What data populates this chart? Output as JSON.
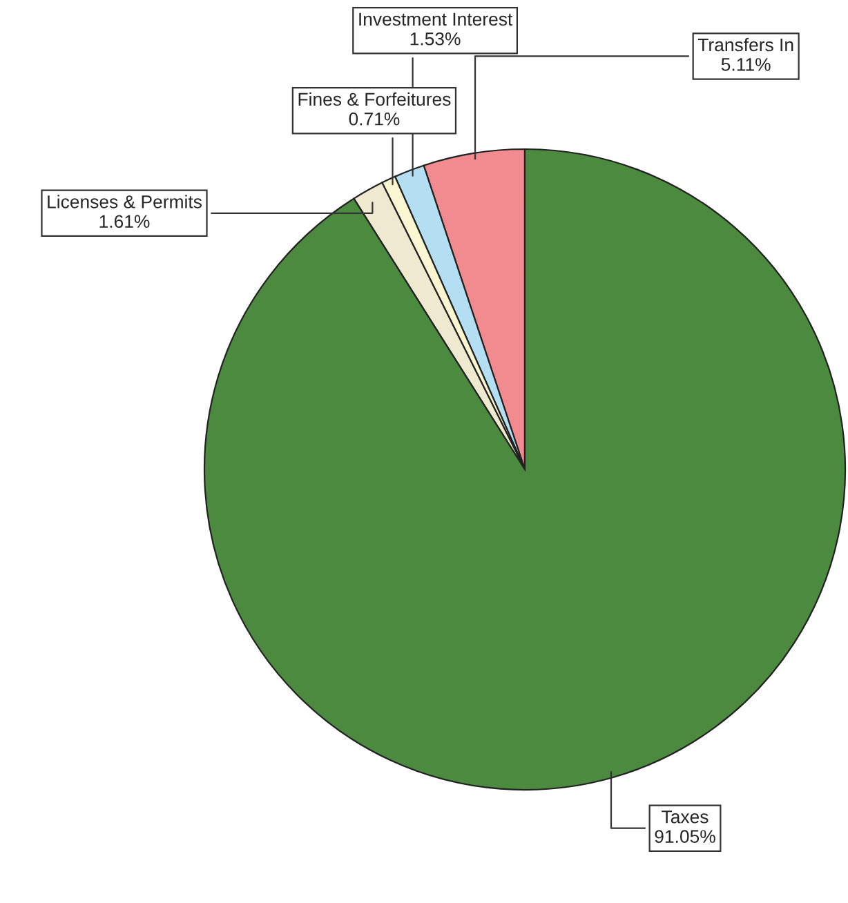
{
  "chart_data": {
    "type": "pie",
    "categories": [
      "Transfers In",
      "Investment Interest",
      "Fines & Forfeitures",
      "Licenses & Permits",
      "Taxes"
    ],
    "values": [
      5.11,
      1.53,
      0.71,
      1.61,
      91.05
    ],
    "value_labels": [
      "5.11%",
      "1.53%",
      "0.71%",
      "1.61%",
      "91.05%"
    ],
    "colors": [
      "#f28b8f",
      "#b4def2",
      "#fbf6d2",
      "#efe9cf",
      "#4b8a3f"
    ],
    "legend": false
  }
}
